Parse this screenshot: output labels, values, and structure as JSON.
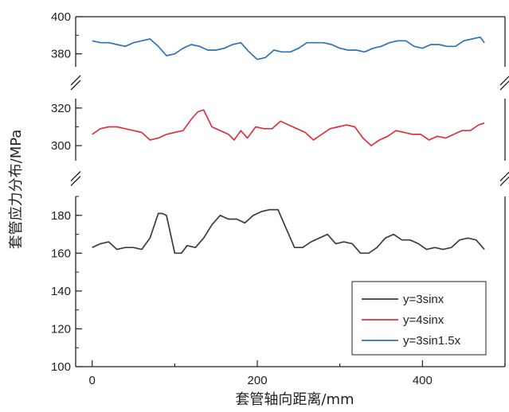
{
  "chart_data": {
    "type": "line",
    "xlabel": "套管轴向距离/mm",
    "ylabel": "套管应力分布/MPa",
    "x_ticks": [
      "0",
      "200",
      "400"
    ],
    "xlim": [
      -20,
      500
    ],
    "axis_breaks": true,
    "segments": [
      {
        "ylim": [
          100,
          190
        ],
        "ticks": [
          100,
          120,
          140,
          160,
          180
        ]
      },
      {
        "ylim": [
          292,
          325
        ],
        "ticks": [
          300,
          320
        ]
      },
      {
        "ylim": [
          373,
          400
        ],
        "ticks": [
          380,
          400
        ]
      }
    ],
    "legend": {
      "placement": "bottom-right"
    },
    "series": [
      {
        "name": "y=3sinx",
        "color": "#3d3d3d",
        "x": [
          0,
          10,
          20,
          30,
          40,
          50,
          60,
          70,
          80,
          85,
          90,
          95,
          100,
          108,
          115,
          125,
          135,
          145,
          155,
          165,
          175,
          185,
          195,
          205,
          215,
          225,
          235,
          245,
          255,
          265,
          275,
          285,
          295,
          305,
          315,
          325,
          335,
          345,
          355,
          365,
          375,
          385,
          395,
          405,
          415,
          425,
          435,
          445,
          455,
          465,
          475
        ],
        "y": [
          163,
          165,
          166,
          162,
          163,
          163,
          162,
          168,
          181,
          181,
          180,
          170,
          160,
          160,
          164,
          163,
          168,
          175,
          180,
          178,
          178,
          176,
          180,
          182,
          183,
          183,
          173,
          163,
          163,
          166,
          168,
          170,
          165,
          166,
          165,
          160,
          160,
          163,
          168,
          170,
          167,
          167,
          165,
          162,
          163,
          162,
          163,
          167,
          168,
          167,
          162
        ]
      },
      {
        "name": "y=4sinx",
        "color": "#e0323c",
        "x": [
          0,
          10,
          20,
          30,
          40,
          50,
          60,
          70,
          80,
          90,
          100,
          110,
          120,
          128,
          135,
          145,
          155,
          165,
          172,
          180,
          188,
          198,
          208,
          218,
          228,
          238,
          248,
          258,
          268,
          278,
          288,
          298,
          308,
          318,
          328,
          338,
          348,
          358,
          368,
          378,
          388,
          398,
          408,
          418,
          428,
          438,
          448,
          458,
          468,
          475
        ],
        "y": [
          306,
          309,
          310,
          310,
          309,
          308,
          307,
          303,
          304,
          306,
          307,
          308,
          314,
          318,
          319,
          310,
          308,
          306,
          303,
          308,
          304,
          310,
          309,
          309,
          313,
          311,
          309,
          307,
          303,
          306,
          309,
          310,
          311,
          310,
          304,
          300,
          303,
          305,
          308,
          307,
          306,
          306,
          303,
          305,
          304,
          306,
          308,
          308,
          311,
          312
        ]
      },
      {
        "name": "y=3sin1.5x",
        "color": "#2f72b8",
        "x": [
          0,
          10,
          20,
          30,
          40,
          50,
          60,
          70,
          80,
          90,
          100,
          110,
          120,
          130,
          140,
          150,
          160,
          170,
          180,
          190,
          200,
          210,
          220,
          230,
          240,
          250,
          260,
          270,
          280,
          290,
          300,
          310,
          320,
          330,
          340,
          350,
          360,
          370,
          380,
          390,
          400,
          410,
          420,
          430,
          440,
          450,
          460,
          470,
          475
        ],
        "y": [
          387,
          386,
          386,
          385,
          384,
          386,
          387,
          388,
          384,
          379,
          380,
          383,
          385,
          384,
          382,
          382,
          383,
          385,
          386,
          381,
          377,
          378,
          382,
          381,
          381,
          383,
          386,
          386,
          386,
          385,
          383,
          382,
          382,
          381,
          383,
          384,
          386,
          387,
          387,
          384,
          383,
          385,
          385,
          384,
          384,
          387,
          388,
          389,
          386
        ]
      }
    ]
  }
}
